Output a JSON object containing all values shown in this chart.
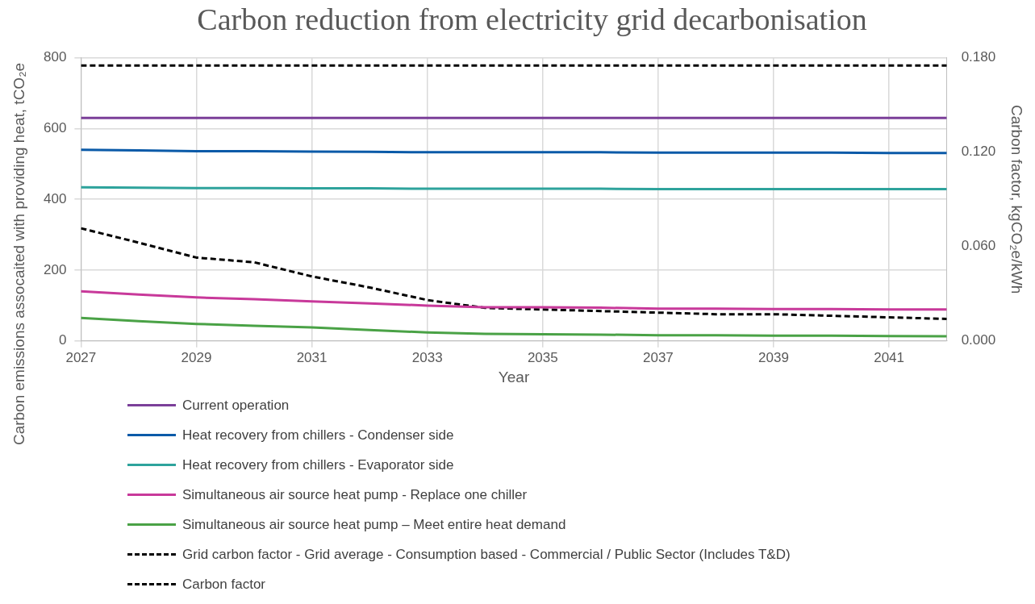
{
  "chart_data": {
    "type": "line",
    "title": "Carbon reduction from electricity grid decarbonisation",
    "xlabel": "Year",
    "ylabel": "Carbon emissions assocaited with providing heat, tCO₂e",
    "y2label": "Carbon factor, kgCO₂e/kWh",
    "x": [
      2027,
      2028,
      2029,
      2030,
      2031,
      2032,
      2033,
      2034,
      2035,
      2036,
      2037,
      2038,
      2039,
      2040,
      2041,
      2042
    ],
    "xlim": [
      2027,
      2042
    ],
    "xticks": [
      2027,
      2029,
      2031,
      2033,
      2035,
      2037,
      2039,
      2041
    ],
    "ylim": [
      0,
      800
    ],
    "yticks": [
      0,
      200,
      400,
      600,
      800
    ],
    "y2lim": [
      0,
      0.18
    ],
    "y2ticks": [
      {
        "value": 0,
        "label": "0.000"
      },
      {
        "value": 0.06,
        "label": "0.060"
      },
      {
        "value": 0.12,
        "label": "0.120"
      },
      {
        "value": 0.18,
        "label": "0.180"
      }
    ],
    "grid": true,
    "legend": "bottom",
    "marker": "none",
    "series": [
      {
        "name": "Current operation",
        "color": "#7b3f99",
        "values": [
          630,
          630,
          630,
          630,
          630,
          630,
          630,
          630,
          630,
          630,
          630,
          630,
          630,
          630,
          630,
          630
        ]
      },
      {
        "name": "Heat recovery from chillers - Condenser side",
        "color": "#0a5aa8",
        "values": [
          540,
          538,
          536,
          536,
          535,
          534,
          533,
          533,
          533,
          533,
          532,
          532,
          532,
          532,
          531,
          531
        ]
      },
      {
        "name": "Heat recovery from chillers - Evaporator side",
        "color": "#2ea39c",
        "values": [
          434,
          433,
          432,
          432,
          431,
          431,
          430,
          430,
          430,
          430,
          429,
          429,
          429,
          429,
          429,
          429
        ]
      },
      {
        "name": "Simultaneous air source heat pump - Replace one chiller",
        "color": "#c8399a",
        "values": [
          140,
          131,
          123,
          118,
          112,
          106,
          100,
          95,
          95,
          94,
          91,
          91,
          90,
          90,
          89,
          89
        ]
      },
      {
        "name": "Simultaneous air source heat pump – Meet entire heat demand",
        "color": "#4aa246",
        "values": [
          65,
          56,
          48,
          43,
          38,
          31,
          24,
          20,
          19,
          18,
          16,
          16,
          15,
          15,
          14,
          13
        ]
      },
      {
        "name": "Grid carbon factor - Grid average - Consumption based - Commercial / Public Sector (Includes T&D)",
        "color": "#000000",
        "axis": "y2",
        "line_style": "dashed",
        "values": [
          0.0716,
          0.0625,
          0.053,
          0.05,
          0.041,
          0.034,
          0.026,
          0.021,
          0.02,
          0.019,
          0.018,
          0.017,
          0.017,
          0.016,
          0.015,
          0.014
        ]
      },
      {
        "name": "Carbon factor",
        "color": "#000000",
        "axis": "y2",
        "line_style": "dashed",
        "values": [
          0.175,
          0.175,
          0.175,
          0.175,
          0.175,
          0.175,
          0.175,
          0.175,
          0.175,
          0.175,
          0.175,
          0.175,
          0.175,
          0.175,
          0.175,
          0.175
        ]
      }
    ]
  }
}
